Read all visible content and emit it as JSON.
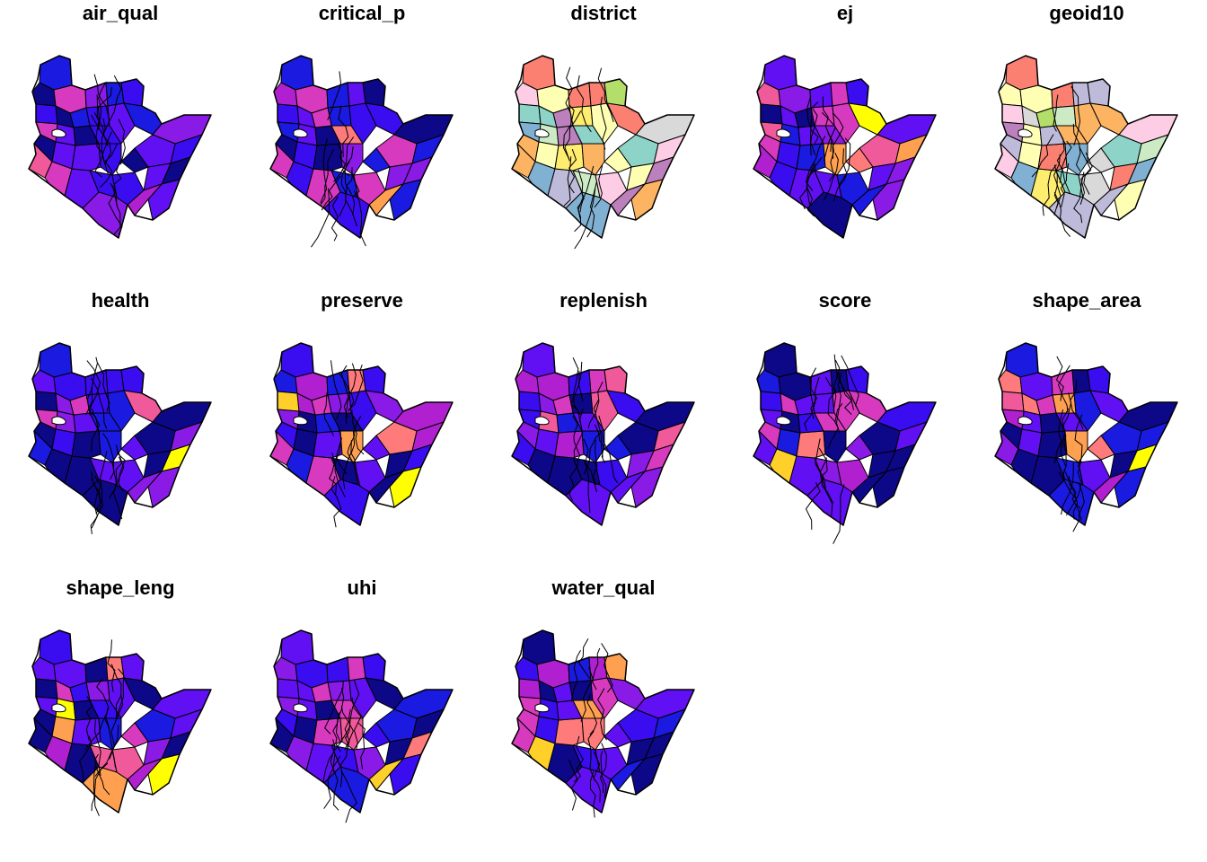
{
  "figure": {
    "panels": [
      {
        "title": "air_qual",
        "palette": "sf_continuous",
        "seed": 11
      },
      {
        "title": "critical_p",
        "palette": "sf_continuous",
        "seed": 23
      },
      {
        "title": "district",
        "palette": "categorical",
        "seed": 37
      },
      {
        "title": "ej",
        "palette": "sf_continuous",
        "seed": 41
      },
      {
        "title": "geoid10",
        "palette": "categorical",
        "seed": 53
      },
      {
        "title": "health",
        "palette": "sf_continuous",
        "seed": 67
      },
      {
        "title": "preserve",
        "palette": "sf_continuous",
        "seed": 71
      },
      {
        "title": "replenish",
        "palette": "sf_continuous",
        "seed": 83
      },
      {
        "title": "score",
        "palette": "sf_continuous",
        "seed": 97
      },
      {
        "title": "shape_area",
        "palette": "sf_continuous",
        "seed": 101
      },
      {
        "title": "shape_leng",
        "palette": "sf_continuous",
        "seed": 113
      },
      {
        "title": "uhi",
        "palette": "sf_continuous",
        "seed": 127
      },
      {
        "title": "water_qual",
        "palette": "sf_continuous",
        "seed": 131
      }
    ],
    "colors": {
      "sf_continuous": [
        "#0D0887",
        "#1A1AE0",
        "#3A0CF0",
        "#6010F2",
        "#8A1AE6",
        "#B020D0",
        "#D83ABF",
        "#F05A9A",
        "#FF7A7A",
        "#FFA050",
        "#FFD02A",
        "#FFFF00"
      ],
      "categorical": [
        "#8DD3C7",
        "#FFFFB3",
        "#BEBADA",
        "#FB8072",
        "#80B1D3",
        "#FDB462",
        "#B3DE69",
        "#FCCDE5",
        "#D9D9D9",
        "#BC80BD",
        "#CCEBC5",
        "#FFED6F"
      ],
      "outline": "#000000"
    }
  }
}
